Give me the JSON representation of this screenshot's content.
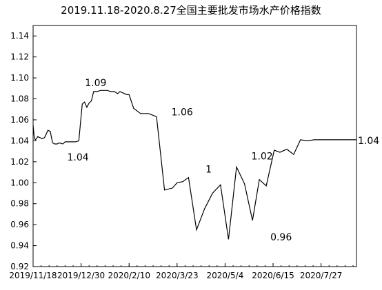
{
  "chart_data": {
    "type": "line",
    "title": "2019.11.18-2020.8.27全国主要批发市场水产价格指数",
    "xlabel": "",
    "ylabel": "",
    "ylim": [
      0.92,
      1.15
    ],
    "grid": false,
    "y_ticks": [
      "0.92",
      "0.94",
      "0.96",
      "0.98",
      "1.00",
      "1.02",
      "1.04",
      "1.06",
      "1.08",
      "1.10",
      "1.12",
      "1.14"
    ],
    "x_ticks": [
      "2019/11/18",
      "2019/12/30",
      "2020/2/10",
      "2020/3/23",
      "2020/5/4",
      "2020/6/15",
      "2020/7/27"
    ],
    "series": [
      {
        "x": [
          "2019-11-18",
          "2019-11-19",
          "2019-11-20",
          "2019-11-21",
          "2019-11-22",
          "2019-11-24",
          "2019-11-26",
          "2019-11-28",
          "2019-12-01",
          "2019-12-03",
          "2019-12-05",
          "2019-12-07",
          "2019-12-09",
          "2019-12-11",
          "2019-12-14",
          "2019-12-16",
          "2019-12-19",
          "2019-12-22",
          "2019-12-25",
          "2019-12-28",
          "2019-12-31",
          "2020-01-02",
          "2020-01-04",
          "2020-01-06",
          "2020-01-08",
          "2020-01-10",
          "2020-01-13",
          "2020-01-16",
          "2020-01-19",
          "2020-01-22",
          "2020-01-25",
          "2020-01-28",
          "2020-01-31",
          "2020-02-02",
          "2020-02-04",
          "2020-02-06",
          "2020-02-08",
          "2020-02-10",
          "2020-02-14",
          "2020-02-20",
          "2020-02-27",
          "2020-03-05",
          "2020-03-12",
          "2020-03-19",
          "2020-03-23",
          "2020-03-28",
          "2020-04-02",
          "2020-04-09",
          "2020-04-16",
          "2020-04-23",
          "2020-04-30",
          "2020-05-07",
          "2020-05-14",
          "2020-05-21",
          "2020-05-28",
          "2020-06-03",
          "2020-06-09",
          "2020-06-16",
          "2020-06-21",
          "2020-06-27",
          "2020-07-03",
          "2020-07-09",
          "2020-07-15",
          "2020-07-21",
          "2020-07-27",
          "2020-08-02",
          "2020-08-09",
          "2020-08-15",
          "2020-08-21",
          "2020-08-27"
        ],
        "values": [
          1.055,
          1.043,
          1.041,
          1.042,
          1.044,
          1.043,
          1.042,
          1.043,
          1.05,
          1.049,
          1.038,
          1.037,
          1.037,
          1.038,
          1.037,
          1.039,
          1.039,
          1.039,
          1.039,
          1.04,
          1.075,
          1.077,
          1.072,
          1.076,
          1.078,
          1.087,
          1.087,
          1.088,
          1.088,
          1.088,
          1.087,
          1.087,
          1.085,
          1.087,
          1.086,
          1.085,
          1.084,
          1.084,
          1.071,
          1.066,
          1.066,
          1.063,
          0.993,
          0.995,
          1.0,
          1.001,
          1.005,
          0.955,
          0.975,
          0.99,
          0.998,
          0.946,
          1.015,
          0.999,
          0.964,
          1.003,
          0.997,
          1.031,
          1.029,
          1.032,
          1.027,
          1.041,
          1.04,
          1.041,
          1.041,
          1.041,
          1.041,
          1.041,
          1.041,
          1.041
        ]
      }
    ],
    "annotations": [
      {
        "text": "1.04",
        "x": "2019-12-14",
        "y": 1.037
      },
      {
        "text": "1.09",
        "x": "2020-01-10",
        "y": 1.087
      },
      {
        "text": "1.06",
        "x": "2020-03-19",
        "y": 1.063
      },
      {
        "text": "1",
        "x": "2020-04-16",
        "y": 1.005
      },
      {
        "text": "1.02",
        "x": "2020-06-03",
        "y": 1.015
      },
      {
        "text": "0.96",
        "x": "2020-06-16",
        "y": 0.964
      },
      {
        "text": "1.04",
        "x": "2020-08-27",
        "y": 1.041
      }
    ]
  }
}
